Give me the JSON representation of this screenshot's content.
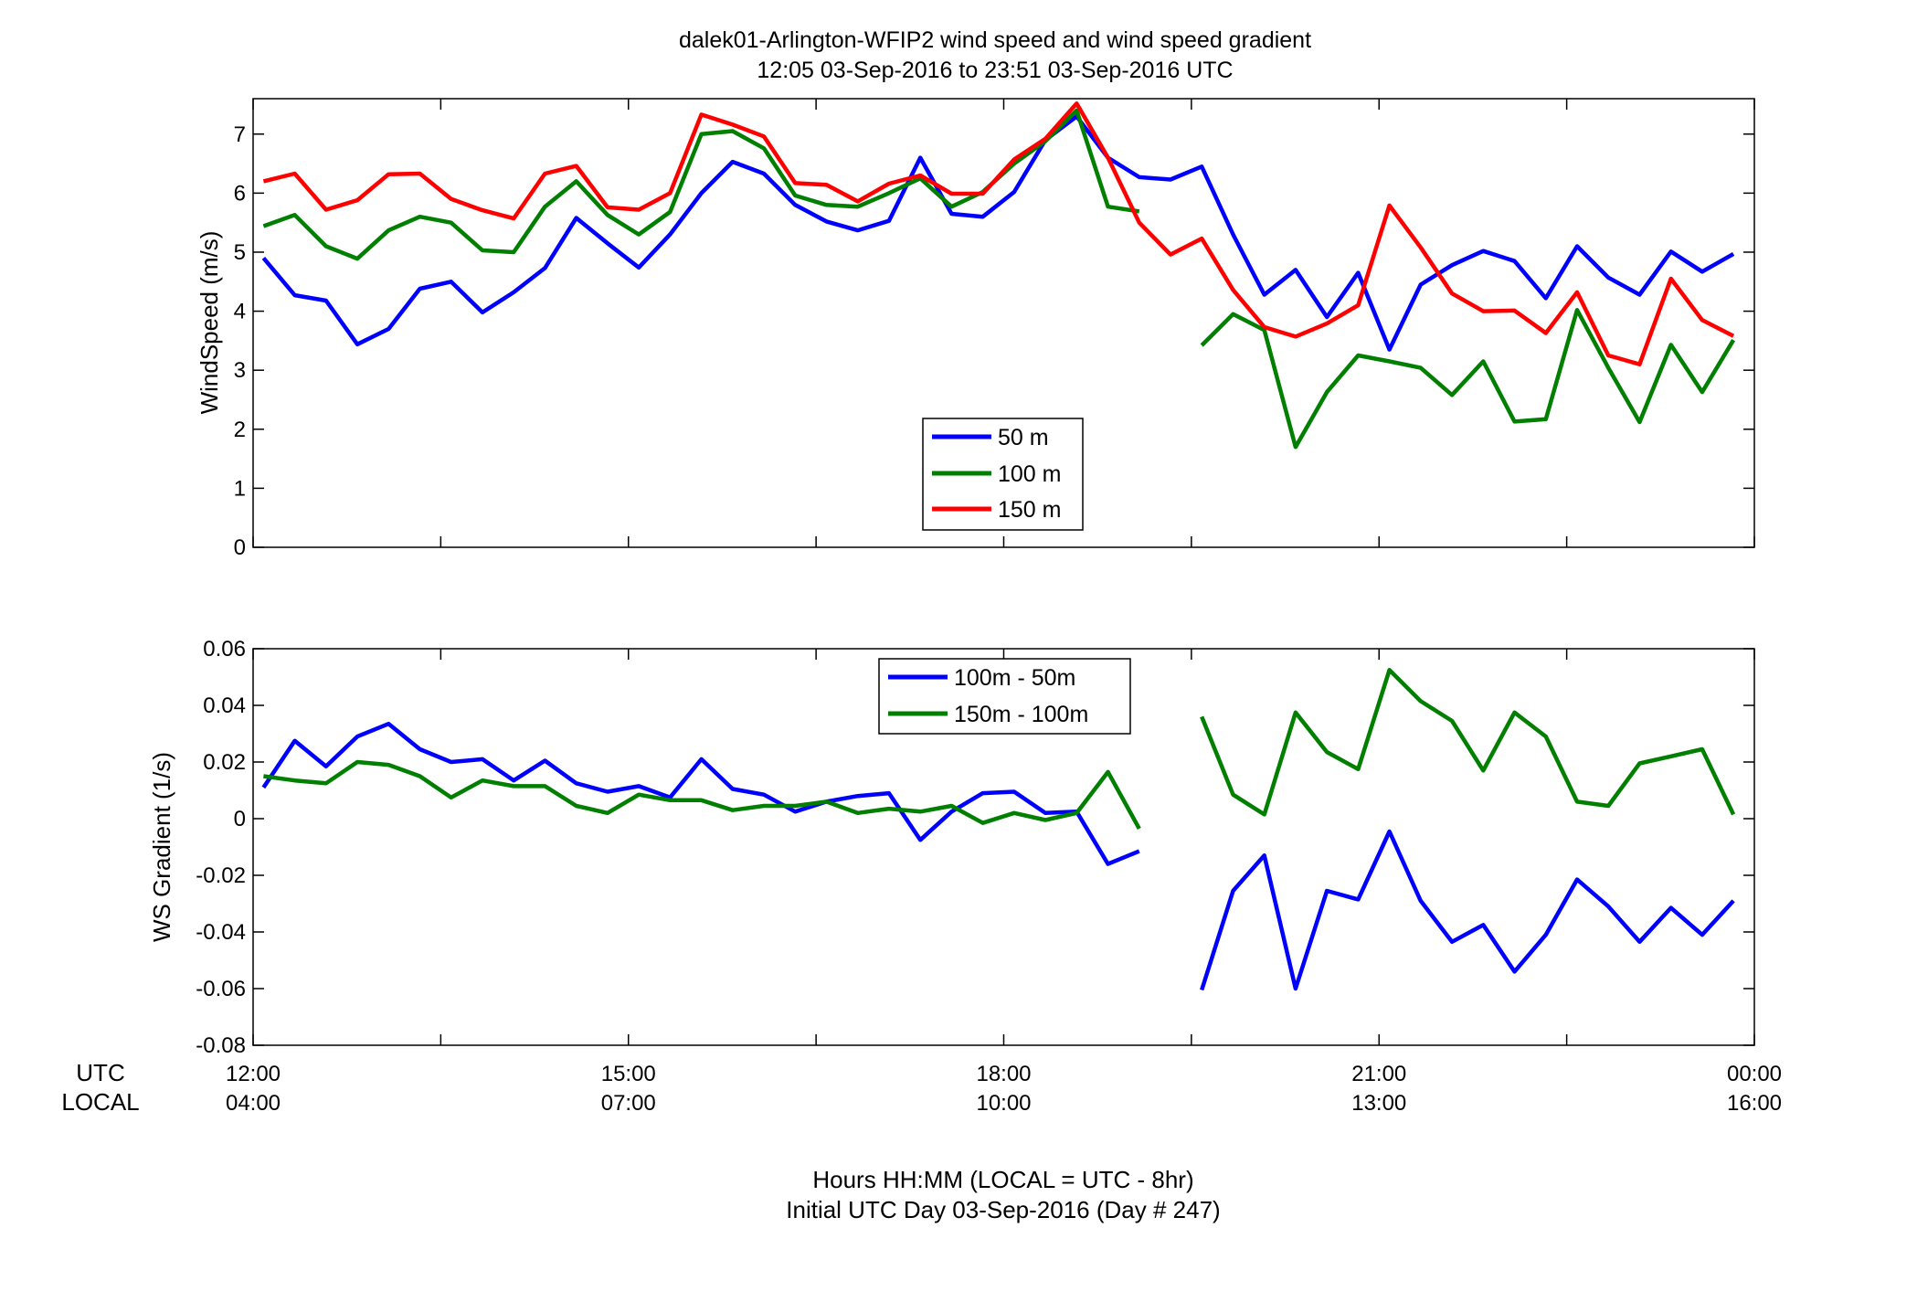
{
  "chart_data": [
    {
      "type": "line",
      "title": "dalek01-Arlington-WFIP2  wind speed and wind speed gradient",
      "subtitle": "12:05 03-Sep-2016 to 23:51 03-Sep-2016  UTC",
      "xlabel": "",
      "ylabel": "WindSpeed (m/s)",
      "xlim": [
        12,
        24
      ],
      "ylim": [
        0,
        7.6
      ],
      "yticks": [
        0,
        1,
        2,
        3,
        4,
        5,
        6,
        7
      ],
      "ytick_labels": [
        "0",
        "1",
        "2",
        "3",
        "4",
        "5",
        "6",
        "7"
      ],
      "legend_position": "center",
      "grid": false,
      "series": [
        {
          "name": "50 m",
          "color": "#0000ff",
          "x": [
            12.083,
            12.333,
            12.583,
            12.833,
            13.083,
            13.333,
            13.583,
            13.833,
            14.083,
            14.333,
            14.583,
            14.833,
            15.083,
            15.333,
            15.583,
            15.833,
            16.083,
            16.333,
            16.583,
            16.833,
            17.083,
            17.333,
            17.583,
            17.833,
            18.083,
            18.333,
            18.583,
            18.833,
            19.083,
            19.333,
            19.583,
            19.833,
            20.083,
            20.333,
            20.583,
            20.833,
            21.083,
            21.333,
            21.583,
            21.833,
            22.083,
            22.333,
            22.583,
            22.833,
            23.083,
            23.333,
            23.583,
            23.833
          ],
          "y": [
            4.9,
            4.27,
            4.18,
            3.44,
            3.7,
            4.38,
            4.5,
            3.98,
            4.32,
            4.73,
            5.58,
            5.15,
            4.74,
            5.3,
            6.0,
            6.53,
            6.33,
            5.8,
            5.52,
            5.37,
            5.53,
            6.6,
            5.65,
            5.6,
            6.02,
            6.9,
            7.3,
            6.6,
            6.27,
            6.23,
            6.45,
            5.3,
            4.28,
            4.7,
            3.9,
            4.65,
            3.35,
            4.45,
            4.78,
            5.02,
            4.85,
            4.22,
            5.1,
            4.57,
            4.28,
            5.01,
            4.67,
            4.97
          ]
        },
        {
          "name": "100 m",
          "color": "#007f00",
          "x": [
            12.083,
            12.333,
            12.583,
            12.833,
            13.083,
            13.333,
            13.583,
            13.833,
            14.083,
            14.333,
            14.583,
            14.833,
            15.083,
            15.333,
            15.583,
            15.833,
            16.083,
            16.333,
            16.583,
            16.833,
            17.083,
            17.333,
            17.583,
            17.833,
            18.083,
            18.333,
            18.583,
            18.833,
            19.083,
            null,
            19.583,
            19.833,
            20.083,
            20.333,
            20.583,
            20.833,
            21.083,
            21.333,
            21.583,
            21.833,
            22.083,
            22.333,
            22.583,
            22.833,
            23.083,
            23.333,
            23.583,
            23.833
          ],
          "y": [
            5.44,
            5.63,
            5.1,
            4.89,
            5.37,
            5.6,
            5.5,
            5.03,
            5.0,
            5.77,
            6.2,
            5.63,
            5.3,
            5.68,
            7.0,
            7.05,
            6.76,
            5.96,
            5.8,
            5.77,
            6.0,
            6.25,
            5.77,
            6.02,
            6.5,
            6.88,
            7.4,
            5.77,
            5.69,
            null,
            3.42,
            3.95,
            3.68,
            1.7,
            2.63,
            3.25,
            3.15,
            3.04,
            2.58,
            3.15,
            2.13,
            2.17,
            4.02,
            3.04,
            2.12,
            3.43,
            2.63,
            3.51
          ]
        },
        {
          "name": "150 m",
          "color": "#ff0000",
          "x": [
            12.083,
            12.333,
            12.583,
            12.833,
            13.083,
            13.333,
            13.583,
            13.833,
            14.083,
            14.333,
            14.583,
            14.833,
            15.083,
            15.333,
            15.583,
            15.833,
            16.083,
            16.333,
            16.583,
            16.833,
            17.083,
            17.333,
            17.583,
            17.833,
            18.083,
            18.333,
            18.583,
            18.833,
            19.083,
            19.333,
            19.583,
            19.833,
            20.083,
            20.333,
            20.583,
            20.833,
            21.083,
            21.333,
            21.583,
            21.833,
            22.083,
            22.333,
            22.583,
            22.833,
            23.083,
            23.333,
            23.583,
            23.833
          ],
          "y": [
            6.2,
            6.33,
            5.72,
            5.88,
            6.32,
            6.33,
            5.9,
            5.71,
            5.57,
            6.33,
            6.46,
            5.76,
            5.72,
            6.0,
            7.33,
            7.16,
            6.96,
            6.17,
            6.14,
            5.86,
            6.16,
            6.3,
            5.99,
            5.99,
            6.57,
            6.92,
            7.52,
            6.6,
            5.5,
            4.96,
            5.23,
            4.36,
            3.73,
            3.57,
            3.79,
            4.1,
            5.79,
            5.08,
            4.3,
            4.0,
            4.01,
            3.63,
            4.32,
            3.25,
            3.1,
            4.55,
            3.85,
            3.58
          ]
        }
      ]
    },
    {
      "type": "line",
      "title": "",
      "xlabel": "Hours HH:MM  (LOCAL = UTC - 8hr)",
      "xlabel2": "Initial UTC Day 03-Sep-2016 (Day # 247)",
      "ylabel": "WS Gradient (1/s)",
      "xlim": [
        12,
        24
      ],
      "ylim": [
        -0.08,
        0.06
      ],
      "yticks": [
        -0.08,
        -0.06,
        -0.04,
        -0.02,
        0,
        0.02,
        0.04,
        0.06
      ],
      "ytick_labels": [
        "-0.08",
        "-0.06",
        "-0.04",
        "-0.02",
        "0",
        "0.02",
        "0.04",
        "0.06"
      ],
      "xticks": [
        12,
        15,
        18,
        21,
        24
      ],
      "xtick_labels_utc": [
        "12:00",
        "15:00",
        "18:00",
        "21:00",
        "00:00"
      ],
      "xtick_labels_local": [
        "04:00",
        "07:00",
        "10:00",
        "13:00",
        "16:00"
      ],
      "xrow_label_utc": "UTC",
      "xrow_label_local": "LOCAL",
      "legend_position": "top-center",
      "grid": false,
      "series": [
        {
          "name": "100m - 50m",
          "color": "#0000ff",
          "x": [
            12.083,
            12.333,
            12.583,
            12.833,
            13.083,
            13.333,
            13.583,
            13.833,
            14.083,
            14.333,
            14.583,
            14.833,
            15.083,
            15.333,
            15.583,
            15.833,
            16.083,
            16.333,
            16.583,
            16.833,
            17.083,
            17.333,
            17.583,
            17.833,
            18.083,
            18.333,
            18.583,
            18.833,
            19.083,
            null,
            19.583,
            19.833,
            20.083,
            20.333,
            20.583,
            20.833,
            21.083,
            21.333,
            21.583,
            21.833,
            22.083,
            22.333,
            22.583,
            22.833,
            23.083,
            23.333,
            23.583,
            23.833
          ],
          "y": [
            0.011,
            0.0275,
            0.0185,
            0.029,
            0.0335,
            0.0245,
            0.02,
            0.021,
            0.0135,
            0.0205,
            0.0125,
            0.0095,
            0.0115,
            0.0075,
            0.021,
            0.0105,
            0.0085,
            0.0025,
            0.006,
            0.008,
            0.009,
            -0.0075,
            0.0025,
            0.009,
            0.0095,
            0.002,
            0.0025,
            -0.016,
            -0.0115,
            null,
            -0.0605,
            -0.0255,
            -0.013,
            -0.06,
            -0.0255,
            -0.0285,
            -0.0045,
            -0.029,
            -0.0435,
            -0.0375,
            -0.054,
            -0.041,
            -0.0215,
            -0.031,
            -0.0435,
            -0.0315,
            -0.041,
            -0.029
          ]
        },
        {
          "name": "150m - 100m",
          "color": "#007f00",
          "x": [
            12.083,
            12.333,
            12.583,
            12.833,
            13.083,
            13.333,
            13.583,
            13.833,
            14.083,
            14.333,
            14.583,
            14.833,
            15.083,
            15.333,
            15.583,
            15.833,
            16.083,
            16.333,
            16.583,
            16.833,
            17.083,
            17.333,
            17.583,
            17.833,
            18.083,
            18.333,
            18.583,
            18.833,
            19.083,
            null,
            19.583,
            19.833,
            20.083,
            20.333,
            20.583,
            20.833,
            21.083,
            21.333,
            21.583,
            21.833,
            22.083,
            22.333,
            22.583,
            22.833,
            23.083,
            23.333,
            23.583,
            23.833
          ],
          "y": [
            0.015,
            0.0135,
            0.0125,
            0.02,
            0.019,
            0.015,
            0.0075,
            0.0135,
            0.0115,
            0.0115,
            0.0045,
            0.002,
            0.0085,
            0.0065,
            0.0065,
            0.003,
            0.0045,
            0.0045,
            0.006,
            0.002,
            0.0035,
            0.0025,
            0.0045,
            -0.0015,
            0.002,
            -0.0005,
            0.002,
            0.0165,
            -0.0035,
            null,
            0.036,
            0.0085,
            0.0015,
            0.0375,
            0.0235,
            0.0175,
            0.0525,
            0.0415,
            0.0345,
            0.017,
            0.0375,
            0.029,
            0.006,
            0.0045,
            0.0195,
            0.022,
            0.0245,
            0.0015
          ]
        }
      ]
    }
  ]
}
